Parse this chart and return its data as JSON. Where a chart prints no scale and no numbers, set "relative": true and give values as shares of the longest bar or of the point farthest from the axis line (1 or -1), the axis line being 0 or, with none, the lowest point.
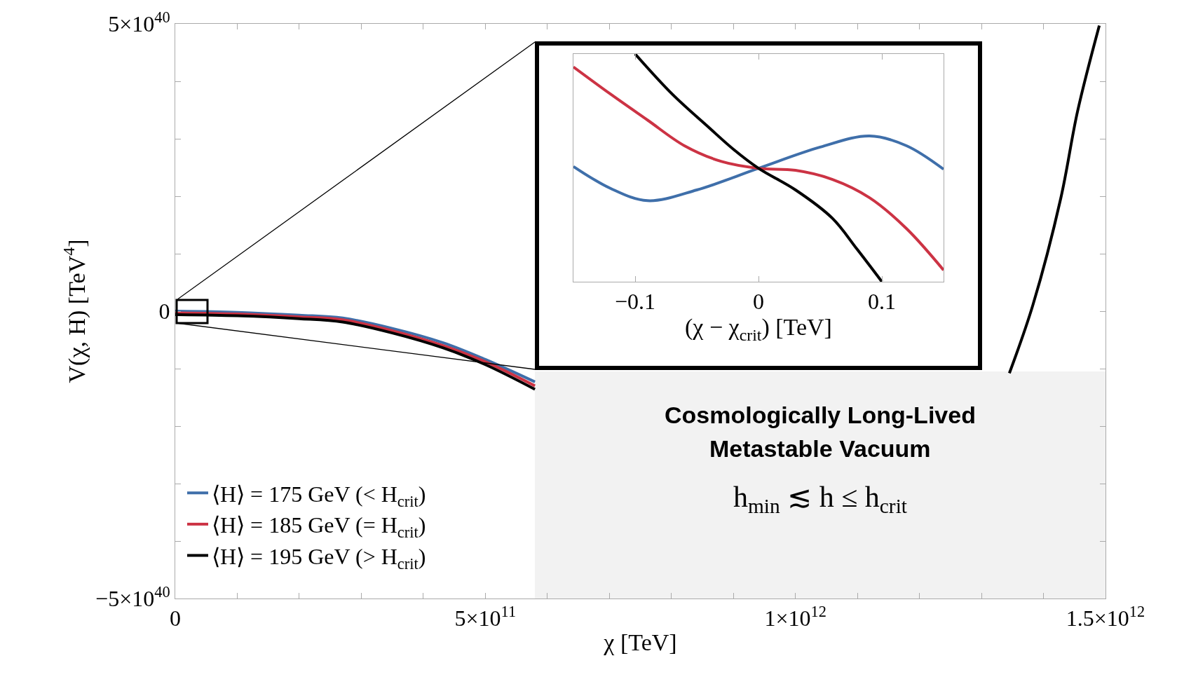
{
  "chart_data": [
    {
      "type": "line",
      "xlabel": "χ [TeV]",
      "ylabel": "V(χ, H) [TeV$^{4}$]",
      "xlim": [
        0,
        1500000000000.0
      ],
      "xticks": [
        0,
        {
          "value": 100000000000.0,
          "label": null
        },
        {
          "value": 200000000000.0,
          "label": null
        },
        {
          "value": 300000000000.0,
          "label": null
        },
        {
          "value": 400000000000.0,
          "label": null
        },
        {
          "value": 500000000000.0,
          "label": "5×10$^{11}$"
        },
        {
          "value": 600000000000.0,
          "label": null
        },
        {
          "value": 700000000000.0,
          "label": null
        },
        {
          "value": 800000000000.0,
          "label": null
        },
        {
          "value": 900000000000.0,
          "label": null
        },
        {
          "value": 1000000000000.0,
          "label": "1×10$^{12}$"
        },
        {
          "value": 1100000000000.0,
          "label": null
        },
        {
          "value": 1200000000000.0,
          "label": null
        },
        {
          "value": 1300000000000.0,
          "label": null
        },
        {
          "value": 1400000000000.0,
          "label": null
        },
        {
          "value": 1500000000000.0,
          "label": "1.5×10$^{12}$"
        }
      ],
      "ylim": [
        -5e+40,
        5e+40
      ],
      "yticks": [
        {
          "value": -5e+40,
          "label": "−5×10$^{40}$"
        },
        {
          "value": -4e+40,
          "label": null
        },
        {
          "value": -3e+40,
          "label": null
        },
        {
          "value": -2e+40,
          "label": null
        },
        {
          "value": -1e+40,
          "label": null
        },
        0,
        {
          "value": 1e+40,
          "label": null
        },
        {
          "value": 2e+40,
          "label": null
        },
        {
          "value": 3e+40,
          "label": null
        },
        {
          "value": 4e+40,
          "label": null
        },
        {
          "value": 5e+40,
          "label": "5×10$^{40}$"
        }
      ],
      "legend": "bottom left",
      "series": [
        {
          "name": "⟨H⟩ = 175 GeV (< H$_{crit}$)",
          "color": "#3f6faa",
          "x": [
            0,
            100000000000.0,
            200000000000.0,
            270000000000.0,
            350000000000.0,
            432000000000.0,
            500000000000.0,
            580000000000.0
          ],
          "values": [
            0,
            -2e+38,
            -7e+38,
            -1.2e+39,
            -3e+39,
            -5.5e+39,
            -8.4e+39,
            -1.23e+40
          ]
        },
        {
          "name": "⟨H⟩ = 185 GeV (= H$_{crit}$)",
          "color": "#cc3344",
          "x": [
            0,
            100000000000.0,
            200000000000.0,
            270000000000.0,
            350000000000.0,
            432000000000.0,
            500000000000.0,
            580000000000.0
          ],
          "values": [
            -3e+38,
            -5e+38,
            -1e+39,
            -1.5e+39,
            -3.4e+39,
            -6e+39,
            -8.8e+39,
            -1.3e+40
          ]
        },
        {
          "name": "⟨H⟩ = 195 GeV (> H$_{crit}$)",
          "color": "#000000",
          "x": [
            0,
            100000000000.0,
            200000000000.0,
            270000000000.0,
            350000000000.0,
            432000000000.0,
            500000000000.0,
            580000000000.0,
            1000000000000.0,
            1345000000000.0,
            1383000000000.0,
            1428000000000.0,
            1455000000000.0,
            1490000000000.0
          ],
          "values": [
            -6e+38,
            -8e+38,
            -1.3e+39,
            -1.9e+39,
            -3.8e+39,
            -6.4e+39,
            -9.3e+39,
            -1.36e+40,
            null,
            -1.08e+40,
            1.1e+39,
            1.97e+40,
            3.48e+40,
            4.97e+40
          ]
        }
      ],
      "annotations": [
        "Cosmologically Long-Lived",
        "Metastable Vacuum",
        "h$_{min}$ ≲ h ≤ h$_{crit}$"
      ]
    },
    {
      "type": "line",
      "relative": true,
      "xlabel": "(χ − χ$_{crit}$) [TeV]",
      "xlim": [
        -0.15,
        0.15
      ],
      "xticks": [
        {
          "value": -0.1,
          "label": "−0.1"
        },
        0,
        0.1
      ],
      "tick_labels": "x",
      "series": [
        {
          "color": "#3f6faa",
          "x": [
            -0.15,
            -0.12,
            -0.09,
            -0.05,
            0,
            0.05,
            0.09,
            0.12,
            0.15
          ],
          "values": [
            0.506,
            0.41,
            0.356,
            0.403,
            0.498,
            0.591,
            0.64,
            0.597,
            0.494
          ]
        },
        {
          "color": "#cc3344",
          "x": [
            -0.15,
            -0.12,
            -0.09,
            -0.06,
            -0.03,
            0,
            0.03,
            0.06,
            0.09,
            0.12,
            0.15
          ],
          "values": [
            0.943,
            0.824,
            0.71,
            0.597,
            0.528,
            0.498,
            0.489,
            0.449,
            0.369,
            0.233,
            0.051
          ]
        },
        {
          "color": "#000000",
          "x": [
            -0.1,
            -0.07,
            -0.04,
            -0.02,
            0,
            0.03,
            0.06,
            0.08,
            0.1
          ],
          "values": [
            1.0,
            0.824,
            0.676,
            0.58,
            0.498,
            0.403,
            0.278,
            0.142,
            0
          ]
        }
      ]
    }
  ]
}
